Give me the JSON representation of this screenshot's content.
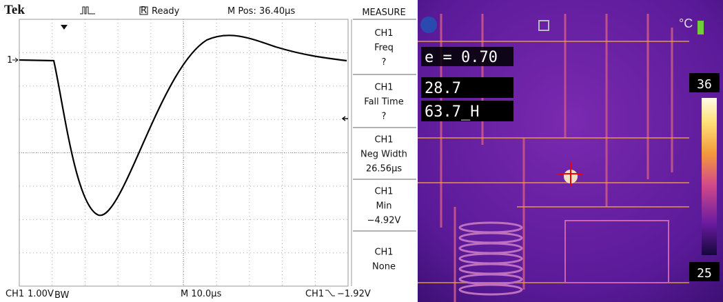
{
  "oscilloscope": {
    "brand": "Tek",
    "status_icon": "R",
    "status": "Ready",
    "position": "M Pos: 36.40μs",
    "channel_marker": "1",
    "measure": {
      "title": "MEASURE",
      "items": [
        {
          "channel": "CH1",
          "label": "Freq",
          "value": "?"
        },
        {
          "channel": "CH1",
          "label": "Fall Time",
          "value": "?"
        },
        {
          "channel": "CH1",
          "label": "Neg Width",
          "value": "26.56μs"
        },
        {
          "channel": "CH1",
          "label": "Min",
          "value": "−4.92V"
        },
        {
          "channel": "CH1",
          "label": "None"
        }
      ]
    },
    "footer": {
      "channel": "CH1",
      "scale": "1.00V",
      "bandwidth": "BW",
      "timebase": "M 10.0μs",
      "trigger_channel": "CH1",
      "trigger_level": "−1.92V"
    }
  },
  "thermal": {
    "unit": "°C",
    "emissivity": "e = 0.70",
    "temperature": "28.7",
    "humidity": "63.7_H",
    "scale_max": "36",
    "scale_min": "25"
  }
}
